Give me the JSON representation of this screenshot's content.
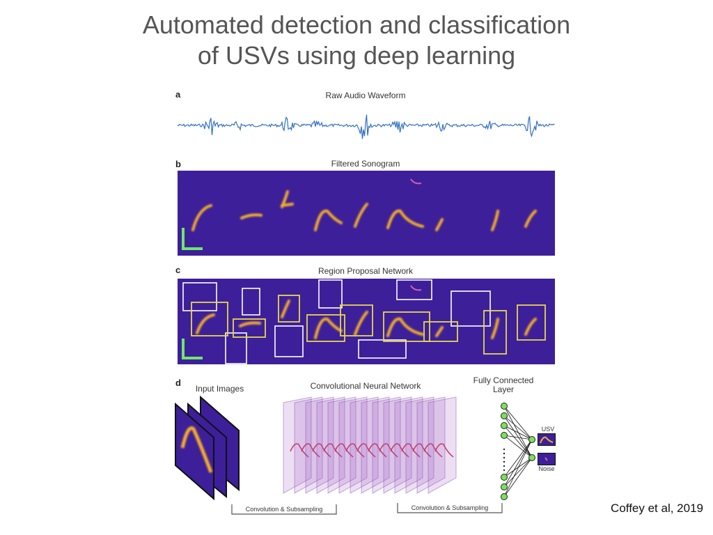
{
  "slide": {
    "title_line1": "Automated detection and classification",
    "title_line2": "of USVs using deep learning",
    "citation": "Coffey et al, 2019"
  },
  "figure": {
    "panel_a": {
      "letter": "a",
      "title": "Raw Audio Waveform"
    },
    "panel_b": {
      "letter": "b",
      "title": "Filtered Sonogram"
    },
    "panel_c": {
      "letter": "c",
      "title": "Region Proposal Network"
    },
    "panel_d": {
      "letter": "d",
      "input_label": "Input Images",
      "cnn_label": "Convolutional Neural Network",
      "fc_label_line1": "Fully Connected",
      "fc_label_line2": "Layer",
      "output_usv": "USV",
      "output_noise": "Noise",
      "bracket1": "Convolution & Subsampling",
      "bracket2": "Convolution & Subsampling"
    }
  },
  "colors": {
    "waveform": "#2f6fc4",
    "spectrogram_bg": "#3d1f9a",
    "call": "#f5b028",
    "box_yellow": "#e8d84a",
    "box_white": "#ffffff",
    "node": "#7be05a",
    "scale_bar": "#6ee86a"
  }
}
